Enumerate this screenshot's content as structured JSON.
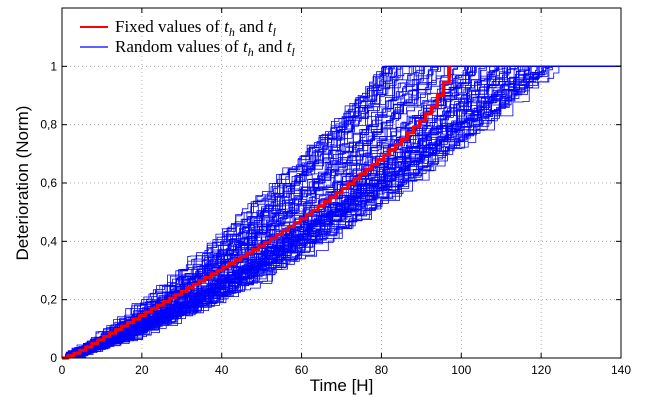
{
  "chart_data": {
    "type": "line",
    "xlabel": "Time [H]",
    "ylabel": "Deterioration (Norm)",
    "xlim": [
      0,
      140
    ],
    "ylim": [
      0,
      1.2
    ],
    "x_ticks": [
      "0",
      "20",
      "40",
      "60",
      "80",
      "100",
      "120",
      "140"
    ],
    "y_ticks": [
      "0",
      "0,2",
      "0,4",
      "0,6",
      "0,8",
      "1"
    ],
    "grid": true,
    "legend_position": "top-left",
    "legend": [
      {
        "text": "Fixed values of t_h and t_l",
        "prefix": "Fixed values of ",
        "sub1": "h",
        "mid": " and ",
        "sub2": "l",
        "color": "#ff0000"
      },
      {
        "text": "Random values of t_h and t_l",
        "prefix": "Random values of ",
        "sub1": "h",
        "mid": " and ",
        "sub2": "l",
        "color": "#0000ff"
      }
    ],
    "series": [
      {
        "name": "Fixed values of t_h and t_l",
        "color": "#ff0000",
        "x": [
          0,
          2,
          5,
          10,
          20,
          30,
          40,
          50,
          60,
          70,
          80,
          85,
          90,
          93,
          95,
          96,
          97
        ],
        "values": [
          0,
          0.01,
          0.03,
          0.07,
          0.15,
          0.23,
          0.31,
          0.39,
          0.48,
          0.58,
          0.69,
          0.75,
          0.82,
          0.87,
          0.93,
          0.96,
          1.0
        ]
      },
      {
        "name": "Random values of t_h and t_l",
        "color": "#0000ff",
        "count": 100,
        "end_time_range": [
          80,
          125
        ],
        "x_end": 140
      }
    ]
  }
}
